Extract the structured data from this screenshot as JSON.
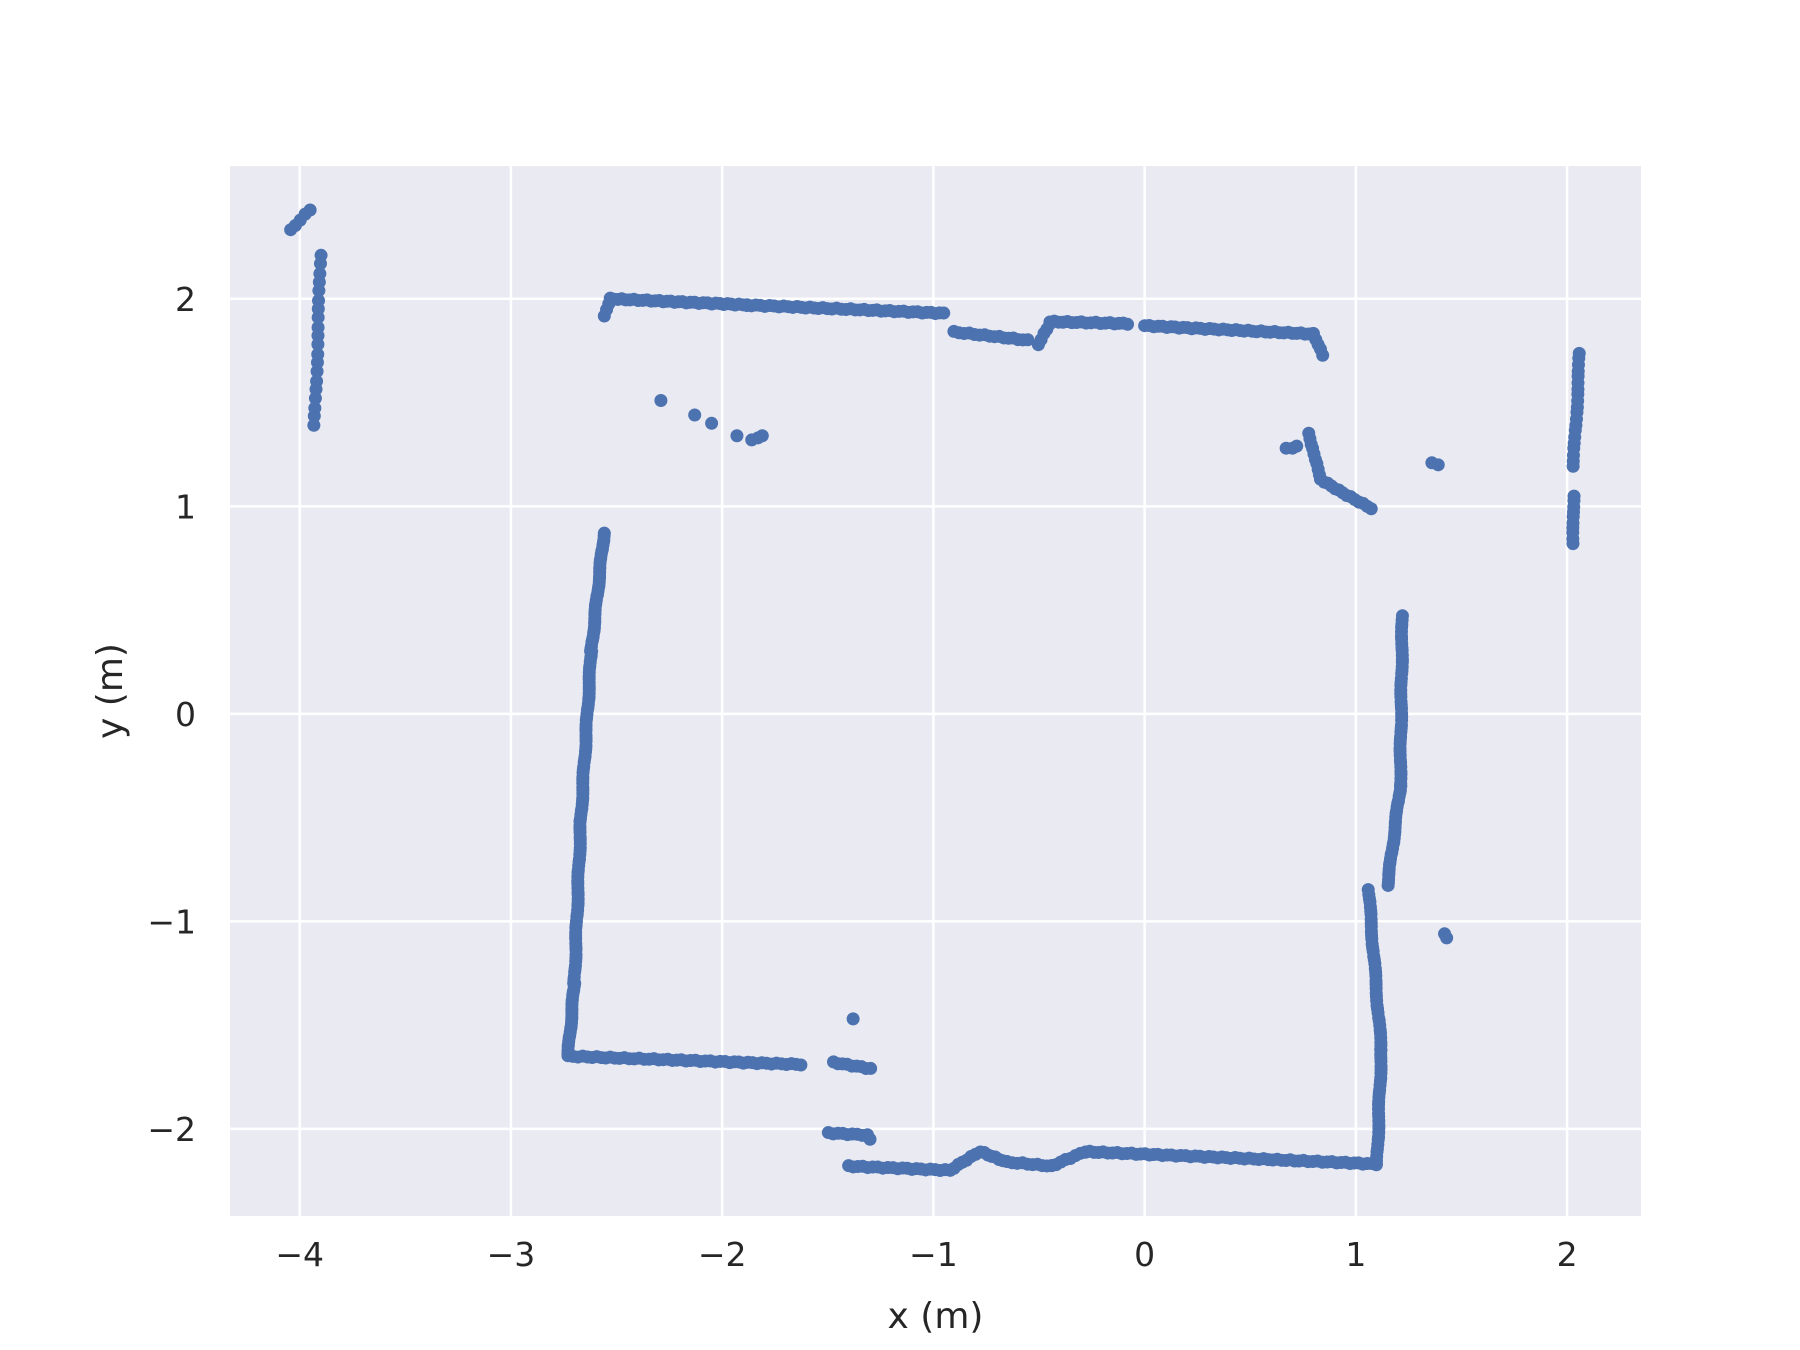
{
  "chart_data": {
    "type": "scatter",
    "title": "",
    "xlabel": "x (m)",
    "ylabel": "y (m)",
    "xlim": [
      -4.33,
      2.35
    ],
    "ylim": [
      -2.42,
      2.64
    ],
    "xticks": [
      -4,
      -3,
      -2,
      -1,
      0,
      1,
      2
    ],
    "xtick_labels": [
      "−4",
      "−3",
      "−2",
      "−1",
      "0",
      "1",
      "2"
    ],
    "yticks": [
      -2,
      -1,
      0,
      1,
      2
    ],
    "ytick_labels": [
      "−2",
      "−1",
      "0",
      "1",
      "2"
    ],
    "grid": true,
    "background": "#eaeaf2",
    "marker_color": "#4c72b0",
    "segments": [
      {
        "from": [
          -4.04,
          2.33
        ],
        "to": [
          -3.95,
          2.43
        ],
        "n": 5
      },
      {
        "from": [
          -3.9,
          2.21
        ],
        "to": [
          -3.93,
          1.39
        ],
        "n": 20
      },
      {
        "from": [
          -2.56,
          1.92
        ],
        "to": [
          -2.53,
          2.0
        ],
        "n": 4
      },
      {
        "from": [
          -2.53,
          2.0
        ],
        "to": [
          -1.88,
          1.97
        ],
        "n": 35
      },
      {
        "from": [
          -1.88,
          1.97
        ],
        "to": [
          -0.95,
          1.93
        ],
        "n": 45
      },
      {
        "from": [
          -0.9,
          1.84
        ],
        "to": [
          -0.55,
          1.8
        ],
        "n": 16
      },
      {
        "from": [
          -0.5,
          1.78
        ],
        "to": [
          -0.45,
          1.88
        ],
        "n": 5
      },
      {
        "from": [
          -0.45,
          1.89
        ],
        "to": [
          -0.08,
          1.88
        ],
        "n": 18
      },
      {
        "from": [
          0.0,
          1.87
        ],
        "to": [
          0.8,
          1.83
        ],
        "n": 40
      },
      {
        "from": [
          0.8,
          1.83
        ],
        "to": [
          0.84,
          1.73
        ],
        "n": 5
      },
      {
        "from": [
          0.78,
          1.35
        ],
        "to": [
          0.83,
          1.13
        ],
        "n": 10
      },
      {
        "from": [
          0.83,
          1.13
        ],
        "to": [
          1.07,
          0.99
        ],
        "n": 14
      },
      {
        "from": [
          2.06,
          1.74
        ],
        "to": [
          2.03,
          1.19
        ],
        "n": 20
      },
      {
        "from": [
          2.03,
          1.05
        ],
        "to": [
          2.03,
          0.82
        ],
        "n": 10
      },
      {
        "from": [
          -2.56,
          0.87
        ],
        "to": [
          -2.62,
          0.3
        ],
        "n": 40
      },
      {
        "from": [
          -2.62,
          0.3
        ],
        "to": [
          -2.67,
          -0.52
        ],
        "n": 50
      },
      {
        "from": [
          -2.67,
          -0.52
        ],
        "to": [
          -2.7,
          -1.3
        ],
        "n": 45
      },
      {
        "from": [
          -2.7,
          -1.3
        ],
        "to": [
          -2.73,
          -1.65
        ],
        "n": 25
      },
      {
        "from": [
          -2.73,
          -1.65
        ],
        "to": [
          -1.63,
          -1.69
        ],
        "n": 50
      },
      {
        "from": [
          -1.47,
          -1.68
        ],
        "to": [
          -1.3,
          -1.71
        ],
        "n": 9
      },
      {
        "from": [
          -1.5,
          -2.02
        ],
        "to": [
          -1.31,
          -2.03
        ],
        "n": 9
      },
      {
        "from": [
          -1.4,
          -2.18
        ],
        "to": [
          -0.92,
          -2.2
        ],
        "n": 22
      },
      {
        "from": [
          -0.92,
          -2.2
        ],
        "to": [
          -0.78,
          -2.11
        ],
        "n": 8
      },
      {
        "from": [
          -0.78,
          -2.11
        ],
        "to": [
          -0.65,
          -2.16
        ],
        "n": 8
      },
      {
        "from": [
          -0.65,
          -2.16
        ],
        "to": [
          -0.44,
          -2.18
        ],
        "n": 10
      },
      {
        "from": [
          -0.44,
          -2.18
        ],
        "to": [
          -0.28,
          -2.11
        ],
        "n": 8
      },
      {
        "from": [
          -0.28,
          -2.11
        ],
        "to": [
          1.1,
          -2.17
        ],
        "n": 65
      },
      {
        "from": [
          1.1,
          -2.17
        ],
        "to": [
          1.12,
          -1.62
        ],
        "n": 30
      },
      {
        "from": [
          1.12,
          -1.62
        ],
        "to": [
          1.06,
          -0.85
        ],
        "n": 40
      },
      {
        "from": [
          1.15,
          -0.83
        ],
        "to": [
          1.21,
          -0.35
        ],
        "n": 30
      },
      {
        "from": [
          1.21,
          -0.35
        ],
        "to": [
          1.22,
          0.47
        ],
        "n": 45
      }
    ],
    "points": [
      [
        -2.29,
        1.51
      ],
      [
        -2.13,
        1.44
      ],
      [
        -2.05,
        1.4
      ],
      [
        -1.93,
        1.34
      ],
      [
        -1.86,
        1.32
      ],
      [
        -1.83,
        1.33
      ],
      [
        -1.81,
        1.34
      ],
      [
        -1.38,
        -1.47
      ],
      [
        -1.3,
        -2.05
      ],
      [
        0.67,
        1.28
      ],
      [
        0.7,
        1.28
      ],
      [
        0.72,
        1.29
      ],
      [
        1.36,
        1.21
      ],
      [
        1.39,
        1.2
      ],
      [
        1.42,
        -1.06
      ],
      [
        1.43,
        -1.08
      ]
    ]
  }
}
